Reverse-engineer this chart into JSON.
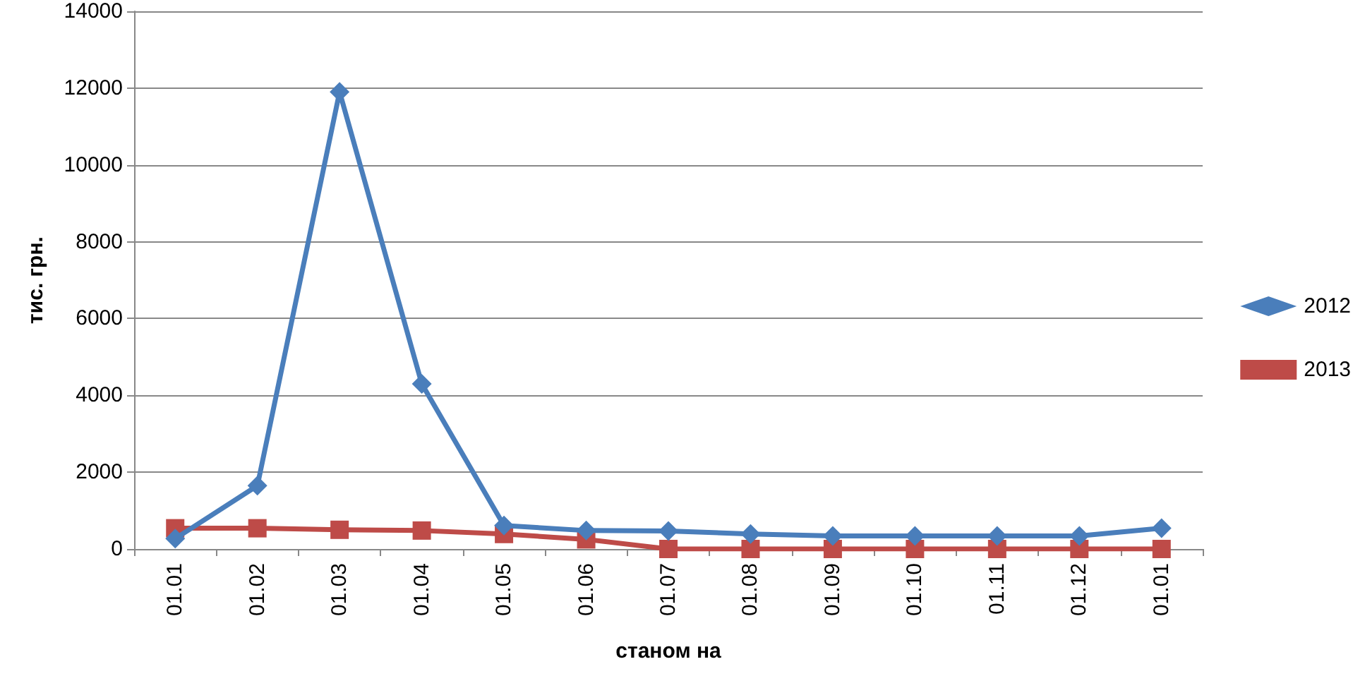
{
  "chart_data": {
    "type": "line",
    "xlabel": "станом на",
    "ylabel": "тис. грн.",
    "categories": [
      "01.01",
      "01.02",
      "01.03",
      "01.04",
      "01.05",
      "01.06",
      "01.07",
      "01.08",
      "01.09",
      "01.10",
      "01.11",
      "01.12",
      "01.01"
    ],
    "series": [
      {
        "name": "2012",
        "color": "#4a7ebb",
        "marker": "diamond",
        "values": [
          270,
          1650,
          11900,
          4300,
          610,
          480,
          470,
          390,
          340,
          340,
          340,
          340,
          540
        ]
      },
      {
        "name": "2013",
        "color": "#be4b48",
        "marker": "square",
        "values": [
          540,
          540,
          500,
          480,
          390,
          250,
          0,
          0,
          0,
          0,
          0,
          0,
          0
        ]
      }
    ],
    "ylim": [
      0,
      14000
    ],
    "yticks": [
      0,
      2000,
      4000,
      6000,
      8000,
      10000,
      12000,
      14000
    ],
    "grid": "y",
    "legend": "right",
    "line_style": "solid"
  }
}
